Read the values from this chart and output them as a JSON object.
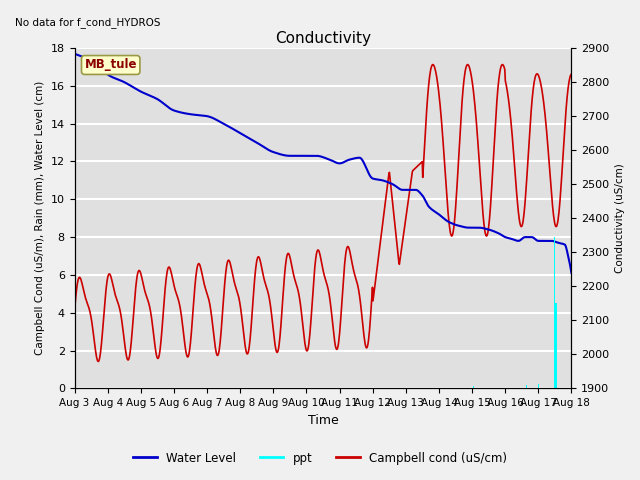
{
  "title": "Conductivity",
  "top_left_text": "No data for f_cond_HYDROS",
  "annotation_box": "MB_tule",
  "xlabel": "Time",
  "ylabel_left": "Campbell Cond (uS/m), Rain (mm), Water Level (cm)",
  "ylabel_right": "Conductivity (uS/cm)",
  "xlim": [
    0,
    15
  ],
  "ylim_left": [
    0,
    18
  ],
  "ylim_right": [
    1900,
    2900
  ],
  "x_ticks_labels": [
    "Aug 3",
    "Aug 4",
    "Aug 5",
    "Aug 6",
    "Aug 7",
    "Aug 8",
    "Aug 9",
    "Aug 10",
    "Aug 11",
    "Aug 12",
    "Aug 13",
    "Aug 14",
    "Aug 15",
    "Aug 16",
    "Aug 17",
    "Aug 18"
  ],
  "x_ticks": [
    0,
    1,
    2,
    3,
    4,
    5,
    6,
    7,
    8,
    9,
    10,
    11,
    12,
    13,
    14,
    15
  ],
  "y_ticks_left": [
    0,
    2,
    4,
    6,
    8,
    10,
    12,
    14,
    16,
    18
  ],
  "y_ticks_right": [
    1900,
    2000,
    2100,
    2200,
    2300,
    2400,
    2500,
    2600,
    2700,
    2800,
    2900
  ],
  "water_level_color": "#0000cc",
  "ppt_color": "#00ffff",
  "campbell_color": "#cc0000",
  "legend_entries": [
    "Water Level",
    "ppt",
    "Campbell cond (uS/cm)"
  ],
  "legend_colors": [
    "#0000cc",
    "#00ffff",
    "#cc0000"
  ]
}
